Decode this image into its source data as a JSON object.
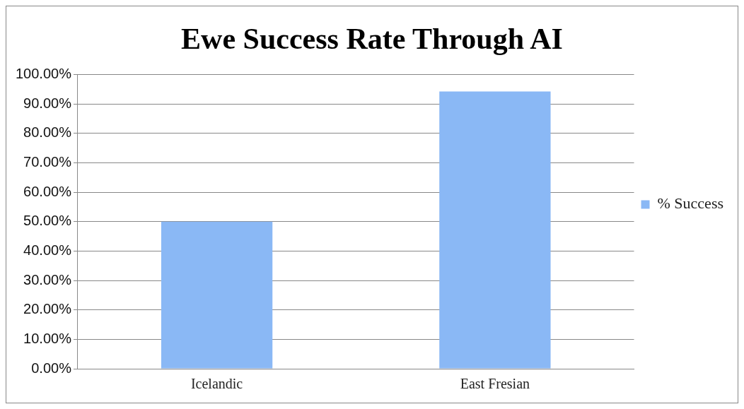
{
  "chart_data": {
    "type": "bar",
    "title": "Ewe Success Rate Through AI",
    "categories": [
      "Icelandic",
      "East Fresian"
    ],
    "series": [
      {
        "name": "% Success",
        "color": "#8ab8f5",
        "values": [
          50,
          94.2
        ]
      }
    ],
    "ylim": [
      0,
      100
    ],
    "yticks": [
      {
        "value": 0,
        "label": "0.00%"
      },
      {
        "value": 10,
        "label": "10.00%"
      },
      {
        "value": 20,
        "label": "20.00%"
      },
      {
        "value": 30,
        "label": "30.00%"
      },
      {
        "value": 40,
        "label": "40.00%"
      },
      {
        "value": 50,
        "label": "50.00%"
      },
      {
        "value": 60,
        "label": "60.00%"
      },
      {
        "value": 70,
        "label": "70.00%"
      },
      {
        "value": 80,
        "label": "80.00%"
      },
      {
        "value": 90,
        "label": "90.00%"
      },
      {
        "value": 100,
        "label": "100.00%"
      }
    ],
    "grid": "y",
    "legend": "right"
  }
}
